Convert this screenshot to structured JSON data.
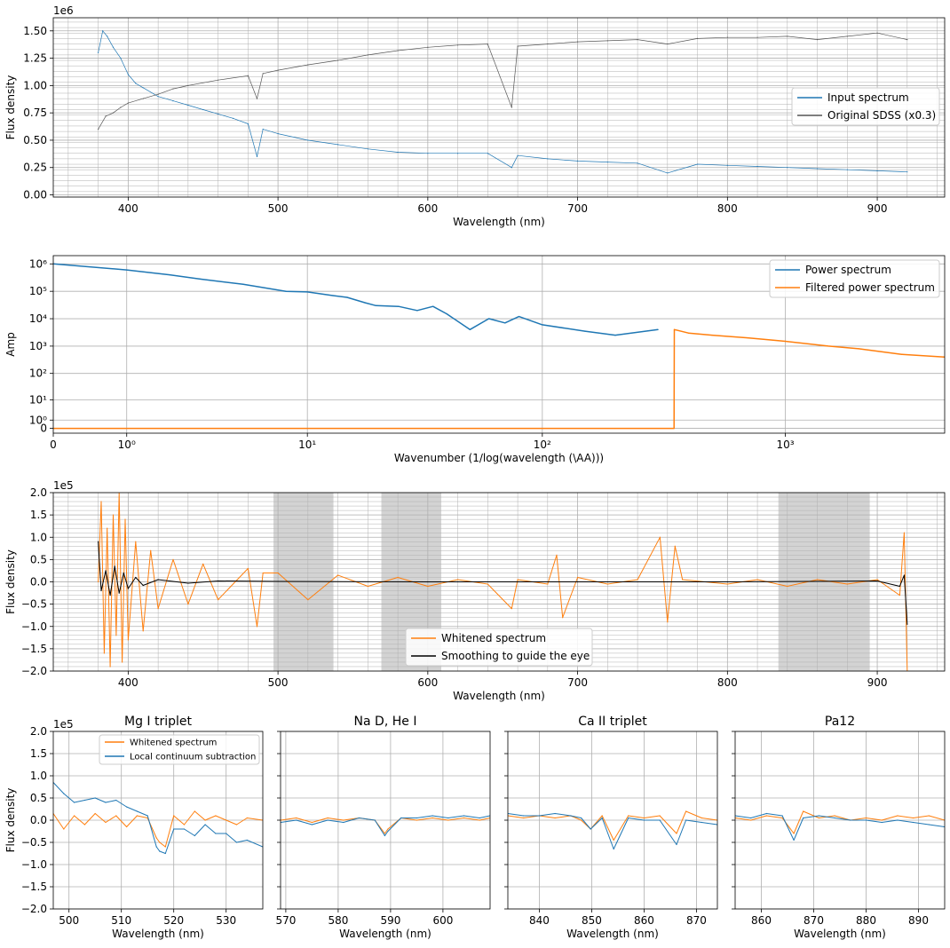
{
  "colors": {
    "blue": "#1f77b4",
    "orange": "#ff7f0e",
    "gray": "#555555",
    "black": "#000000",
    "band": "#d3d3d3",
    "grid": "#b0b0b0"
  },
  "chart_data": [
    {
      "id": "p1",
      "type": "line",
      "xlabel": "Wavelength (nm)",
      "ylabel": "Flux density",
      "offset_text": "1e6",
      "xlim": [
        350,
        945
      ],
      "ylim": [
        -0.02,
        1.62
      ],
      "xticks": [
        400,
        500,
        600,
        700,
        800,
        900
      ],
      "yticks": [
        0.0,
        0.25,
        0.5,
        0.75,
        1.0,
        1.25,
        1.5
      ],
      "ytick_labels": [
        "0.00",
        "0.25",
        "0.50",
        "0.75",
        "1.00",
        "1.25",
        "1.50"
      ],
      "legend_loc": "center-right",
      "series": [
        {
          "name": "Input spectrum",
          "color": "#1f77b4",
          "x": [
            380,
            383,
            386,
            390,
            395,
            400,
            405,
            410,
            420,
            430,
            440,
            450,
            460,
            470,
            480,
            486,
            490,
            500,
            520,
            540,
            560,
            580,
            600,
            620,
            640,
            656,
            660,
            680,
            700,
            720,
            740,
            760,
            780,
            800,
            820,
            840,
            860,
            880,
            900,
            920
          ],
          "y": [
            1.3,
            1.5,
            1.45,
            1.35,
            1.25,
            1.1,
            1.02,
            0.98,
            0.9,
            0.86,
            0.82,
            0.78,
            0.74,
            0.7,
            0.65,
            0.35,
            0.6,
            0.56,
            0.5,
            0.46,
            0.42,
            0.39,
            0.38,
            0.38,
            0.38,
            0.25,
            0.36,
            0.33,
            0.31,
            0.3,
            0.29,
            0.2,
            0.28,
            0.27,
            0.26,
            0.25,
            0.24,
            0.23,
            0.22,
            0.21
          ]
        },
        {
          "name": "Original SDSS (x0.3)",
          "color": "#555555",
          "x": [
            380,
            385,
            390,
            395,
            400,
            410,
            420,
            430,
            440,
            460,
            480,
            486,
            490,
            500,
            520,
            540,
            560,
            580,
            600,
            620,
            640,
            656,
            660,
            680,
            700,
            720,
            740,
            760,
            780,
            800,
            820,
            840,
            860,
            880,
            900,
            920
          ],
          "y": [
            0.6,
            0.72,
            0.75,
            0.8,
            0.84,
            0.88,
            0.92,
            0.97,
            1.0,
            1.05,
            1.09,
            0.88,
            1.11,
            1.14,
            1.19,
            1.23,
            1.28,
            1.32,
            1.35,
            1.37,
            1.38,
            0.8,
            1.36,
            1.38,
            1.4,
            1.41,
            1.42,
            1.38,
            1.43,
            1.44,
            1.44,
            1.45,
            1.42,
            1.45,
            1.48,
            1.42
          ]
        }
      ]
    },
    {
      "id": "p2",
      "type": "line",
      "xlabel": "Wavenumber (1/log(wavelength (\\AA)))",
      "ylabel": "Amp",
      "xscale": "symlog",
      "yscale": "symlog",
      "xlim": [
        0,
        4500
      ],
      "ylim": [
        -0.5,
        2000000
      ],
      "xticks": [
        0,
        1,
        10,
        100,
        1000
      ],
      "yticks": [
        0,
        1,
        10,
        100,
        1000,
        10000,
        100000,
        1000000
      ],
      "xtick_labels": [
        "0",
        "10⁰",
        "10¹",
        "10²",
        "10³"
      ],
      "ytick_labels": [
        "0",
        "10⁰",
        "10¹",
        "10²",
        "10³",
        "10⁴",
        "10⁵",
        "10⁶"
      ],
      "legend_loc": "top-right",
      "series": [
        {
          "name": "Power spectrum",
          "color": "#1f77b4",
          "x": [
            0,
            1,
            2,
            3,
            5,
            8,
            10,
            13,
            15,
            18,
            20,
            25,
            30,
            35,
            40,
            50,
            60,
            70,
            80,
            100,
            150,
            200,
            300
          ],
          "y": [
            1000000,
            600000,
            400000,
            280000,
            180000,
            100000,
            95000,
            70000,
            60000,
            38000,
            30000,
            28000,
            20000,
            28000,
            15000,
            4000,
            10000,
            7000,
            12000,
            6000,
            3500,
            2500,
            4000
          ]
        },
        {
          "name": "Filtered power spectrum",
          "color": "#ff7f0e",
          "x": [
            0,
            100,
            200,
            349,
            350,
            400,
            500,
            700,
            1000,
            1500,
            2000,
            3000,
            4500
          ],
          "y": [
            0,
            0,
            0,
            0,
            4000,
            3000,
            2500,
            2000,
            1500,
            1000,
            800,
            500,
            400
          ]
        }
      ]
    },
    {
      "id": "p3",
      "type": "line",
      "xlabel": "Wavelength (nm)",
      "ylabel": "Flux density",
      "offset_text": "1e5",
      "xlim": [
        350,
        945
      ],
      "ylim": [
        -2.0,
        2.0
      ],
      "xticks": [
        400,
        500,
        600,
        700,
        800,
        900
      ],
      "yticks": [
        -2.0,
        -1.5,
        -1.0,
        -0.5,
        0.0,
        0.5,
        1.0,
        1.5,
        2.0
      ],
      "ytick_labels": [
        "−2.0",
        "−1.5",
        "−1.0",
        "−0.5",
        "0.0",
        "0.5",
        "1.0",
        "1.5",
        "2.0"
      ],
      "shaded_ranges": [
        [
          497,
          537
        ],
        [
          569,
          609
        ],
        [
          834,
          895
        ]
      ],
      "legend_loc": "lower-center",
      "series": [
        {
          "name": "Whitened spectrum",
          "color": "#ff7f0e",
          "x": [
            380,
            382,
            384,
            386,
            388,
            390,
            392,
            394,
            396,
            398,
            400,
            405,
            410,
            415,
            420,
            430,
            440,
            450,
            460,
            480,
            486,
            490,
            500,
            520,
            540,
            560,
            580,
            600,
            620,
            640,
            656,
            660,
            680,
            686,
            690,
            700,
            720,
            740,
            755,
            760,
            765,
            770,
            800,
            820,
            840,
            860,
            880,
            900,
            915,
            918,
            920
          ],
          "y": [
            0,
            1.8,
            -1.6,
            1.2,
            -1.9,
            1.5,
            -1.2,
            2.0,
            -1.8,
            1.4,
            -1.3,
            0.9,
            -1.1,
            0.7,
            -0.6,
            0.5,
            -0.5,
            0.4,
            -0.4,
            0.3,
            -1.0,
            0.2,
            0.2,
            -0.4,
            0.15,
            -0.1,
            0.1,
            -0.1,
            0.05,
            -0.05,
            -0.6,
            0.05,
            -0.05,
            0.6,
            -0.8,
            0.1,
            -0.05,
            0.05,
            1.0,
            -0.9,
            0.8,
            0.05,
            -0.05,
            0.05,
            -0.1,
            0.05,
            -0.05,
            0.05,
            -0.3,
            1.1,
            -2.0
          ]
        },
        {
          "name": "Smoothing to guide the eye",
          "color": "#000000",
          "x": [
            380,
            382,
            385,
            388,
            391,
            394,
            397,
            400,
            405,
            410,
            420,
            440,
            460,
            500,
            600,
            700,
            800,
            900,
            915,
            918,
            920
          ],
          "y": [
            0.9,
            -0.2,
            0.25,
            -0.3,
            0.35,
            -0.25,
            0.2,
            -0.15,
            0.1,
            -0.08,
            0.05,
            -0.03,
            0.02,
            0.01,
            0.0,
            0.0,
            0.0,
            0.02,
            -0.1,
            0.15,
            -0.95
          ]
        }
      ]
    },
    {
      "id": "p4",
      "type": "line",
      "title": "Mg I triplet",
      "xlabel": "Wavelength (nm)",
      "ylabel": "Flux density",
      "offset_text": "1e5",
      "xlim": [
        497,
        537
      ],
      "ylim": [
        -2.0,
        2.0
      ],
      "xticks": [
        500,
        510,
        520,
        530
      ],
      "yticks": [
        -2.0,
        -1.5,
        -1.0,
        -0.5,
        0.0,
        0.5,
        1.0,
        1.5,
        2.0
      ],
      "ytick_labels": [
        "−2.0",
        "−1.5",
        "−1.0",
        "−0.5",
        "0.0",
        "0.5",
        "1.0",
        "1.5",
        "2.0"
      ],
      "legend_loc": "top-center",
      "series": [
        {
          "name": "Whitened spectrum",
          "color": "#ff7f0e",
          "x": [
            497,
            499,
            501,
            503,
            505,
            507,
            509,
            511,
            513,
            515,
            516.7,
            517.3,
            518.4,
            520,
            522,
            524,
            526,
            528,
            530,
            532,
            534,
            537
          ],
          "y": [
            0.15,
            -0.2,
            0.1,
            -0.1,
            0.15,
            -0.05,
            0.1,
            -0.15,
            0.1,
            0.05,
            -0.4,
            -0.5,
            -0.6,
            0.1,
            -0.1,
            0.2,
            0.0,
            0.1,
            0.0,
            -0.1,
            0.05,
            0.0
          ]
        },
        {
          "name": "Local continuum subtraction",
          "color": "#1f77b4",
          "x": [
            497,
            499,
            501,
            503,
            505,
            507,
            509,
            511,
            513,
            515,
            516.7,
            517.3,
            518.4,
            520,
            522,
            524,
            526,
            528,
            530,
            532,
            534,
            537
          ],
          "y": [
            0.85,
            0.6,
            0.4,
            0.45,
            0.5,
            0.4,
            0.45,
            0.3,
            0.2,
            0.1,
            -0.6,
            -0.7,
            -0.75,
            -0.2,
            -0.2,
            -0.35,
            -0.1,
            -0.3,
            -0.3,
            -0.5,
            -0.45,
            -0.6
          ]
        }
      ]
    },
    {
      "id": "p5",
      "type": "line",
      "title": "Na D, He I",
      "xlabel": "Wavelength (nm)",
      "xlim": [
        569,
        609
      ],
      "ylim": [
        -2.0,
        2.0
      ],
      "xticks": [
        570,
        580,
        590,
        600
      ],
      "series": [
        {
          "name": "Whitened spectrum",
          "color": "#ff7f0e",
          "x": [
            569,
            572,
            575,
            578,
            581,
            584,
            587,
            588.9,
            589.5,
            592,
            595,
            598,
            601,
            604,
            607,
            609
          ],
          "y": [
            0.0,
            0.05,
            -0.05,
            0.05,
            0.0,
            0.05,
            0.0,
            -0.3,
            -0.2,
            0.05,
            0.0,
            0.05,
            0.0,
            0.05,
            0.0,
            0.05
          ]
        },
        {
          "name": "Local continuum subtraction",
          "color": "#1f77b4",
          "x": [
            569,
            572,
            575,
            578,
            581,
            584,
            587,
            588.9,
            589.5,
            592,
            595,
            598,
            601,
            604,
            607,
            609
          ],
          "y": [
            -0.05,
            0.0,
            -0.1,
            0.0,
            -0.05,
            0.05,
            0.0,
            -0.35,
            -0.25,
            0.05,
            0.05,
            0.1,
            0.05,
            0.1,
            0.05,
            0.1
          ]
        }
      ]
    },
    {
      "id": "p6",
      "type": "line",
      "title": "Ca II triplet",
      "xlabel": "Wavelength (nm)",
      "xlim": [
        834,
        874
      ],
      "ylim": [
        -2.0,
        2.0
      ],
      "xticks": [
        840,
        850,
        860,
        870
      ],
      "series": [
        {
          "name": "Whitened spectrum",
          "color": "#ff7f0e",
          "x": [
            834,
            837,
            840,
            843,
            846,
            848,
            849.8,
            852,
            854.2,
            857,
            860,
            863,
            866.2,
            868,
            871,
            874
          ],
          "y": [
            0.1,
            0.05,
            0.1,
            0.05,
            0.1,
            0.0,
            -0.2,
            0.1,
            -0.45,
            0.1,
            0.05,
            0.1,
            -0.3,
            0.2,
            0.05,
            0.0
          ]
        },
        {
          "name": "Local continuum subtraction",
          "color": "#1f77b4",
          "x": [
            834,
            837,
            840,
            843,
            846,
            848,
            849.8,
            852,
            854.2,
            857,
            860,
            863,
            866.2,
            868,
            871,
            874
          ],
          "y": [
            0.15,
            0.1,
            0.1,
            0.15,
            0.1,
            0.05,
            -0.2,
            0.05,
            -0.65,
            0.05,
            0.0,
            0.0,
            -0.55,
            0.0,
            -0.05,
            -0.1
          ]
        }
      ]
    },
    {
      "id": "p7",
      "type": "line",
      "title": "Pa12",
      "xlabel": "Wavelength (nm)",
      "xlim": [
        855,
        895
      ],
      "ylim": [
        -2.0,
        2.0
      ],
      "xticks": [
        860,
        870,
        880,
        890
      ],
      "series": [
        {
          "name": "Whitened spectrum",
          "color": "#ff7f0e",
          "x": [
            855,
            858,
            861,
            864,
            866.2,
            868,
            871,
            874,
            877,
            880,
            883,
            886,
            889,
            892,
            895
          ],
          "y": [
            0.05,
            0.0,
            0.1,
            0.05,
            -0.3,
            0.2,
            0.05,
            0.1,
            0.0,
            0.05,
            0.0,
            0.1,
            0.05,
            0.1,
            0.0
          ]
        },
        {
          "name": "Local continuum subtraction",
          "color": "#1f77b4",
          "x": [
            855,
            858,
            861,
            864,
            866.2,
            868,
            871,
            874,
            877,
            880,
            883,
            886,
            889,
            892,
            895
          ],
          "y": [
            0.1,
            0.05,
            0.15,
            0.1,
            -0.45,
            0.05,
            0.1,
            0.05,
            0.0,
            0.0,
            -0.05,
            0.0,
            -0.05,
            -0.1,
            -0.15
          ]
        }
      ]
    }
  ]
}
